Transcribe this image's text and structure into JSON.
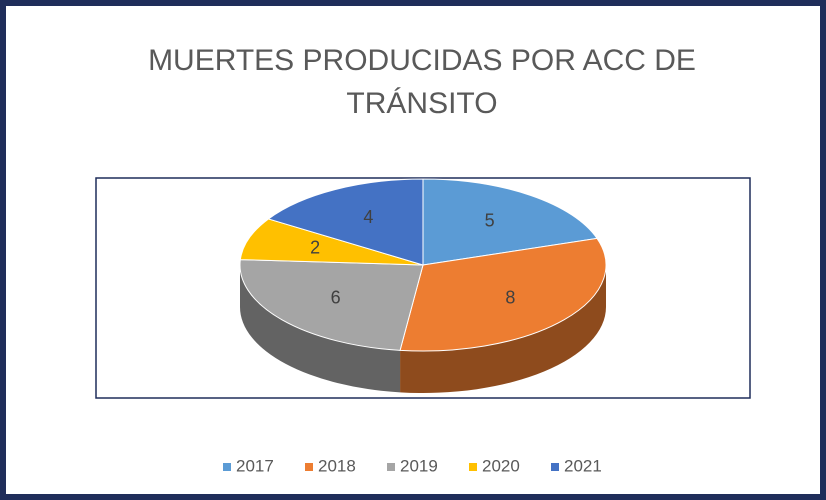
{
  "chart_data": {
    "type": "pie3d",
    "title": [
      "MUERTES PRODUCIDAS POR ACC DE",
      "TRÁNSITO"
    ],
    "categories": [
      "2017",
      "2018",
      "2019",
      "2020",
      "2021"
    ],
    "values": [
      5,
      8,
      6,
      2,
      4
    ],
    "colors": [
      "#5b9bd5",
      "#ed7d31",
      "#a5a5a5",
      "#ffc000",
      "#4472c4"
    ],
    "legend": "bottom"
  }
}
